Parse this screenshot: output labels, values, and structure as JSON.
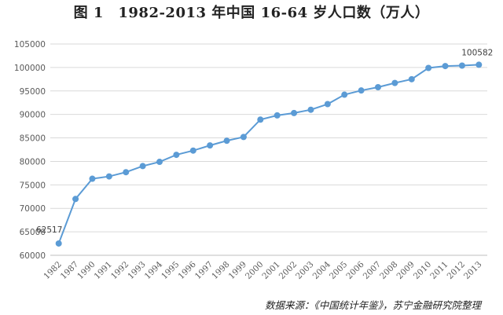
{
  "title": "图 1　1982-2013 年中国 16-64 岁人口数（万人）",
  "source": "数据来源：《中国统计年鉴》，苏宁金融研究院整理",
  "chart_data": {
    "type": "line",
    "title": "图 1　1982-2013 年中国 16-64 岁人口数（万人）",
    "categories": [
      "1982",
      "1987",
      "1990",
      "1991",
      "1992",
      "1993",
      "1994",
      "1995",
      "1996",
      "1997",
      "1998",
      "1999",
      "2000",
      "2001",
      "2002",
      "2003",
      "2004",
      "2005",
      "2006",
      "2007",
      "2008",
      "2009",
      "2010",
      "2011",
      "2012",
      "2013"
    ],
    "series": [
      {
        "values": [
          62517,
          72000,
          76300,
          76800,
          77700,
          79000,
          79900,
          81400,
          82300,
          83400,
          84400,
          85200,
          88900,
          89800,
          90300,
          91000,
          92200,
          94200,
          95100,
          95800,
          96700,
          97500,
          99900,
          100300,
          100400,
          100582
        ]
      }
    ],
    "ylim": [
      60000,
      105000
    ],
    "yticks": [
      "60000",
      "65000",
      "70000",
      "75000",
      "80000",
      "85000",
      "90000",
      "95000",
      "100000",
      "105000"
    ],
    "data_labels": [
      {
        "index": 0,
        "text": "62517"
      },
      {
        "index": 25,
        "text": "100582"
      }
    ],
    "grid": true,
    "line_color": "#5b9bd5",
    "grid_color": "#d9d9d9"
  }
}
